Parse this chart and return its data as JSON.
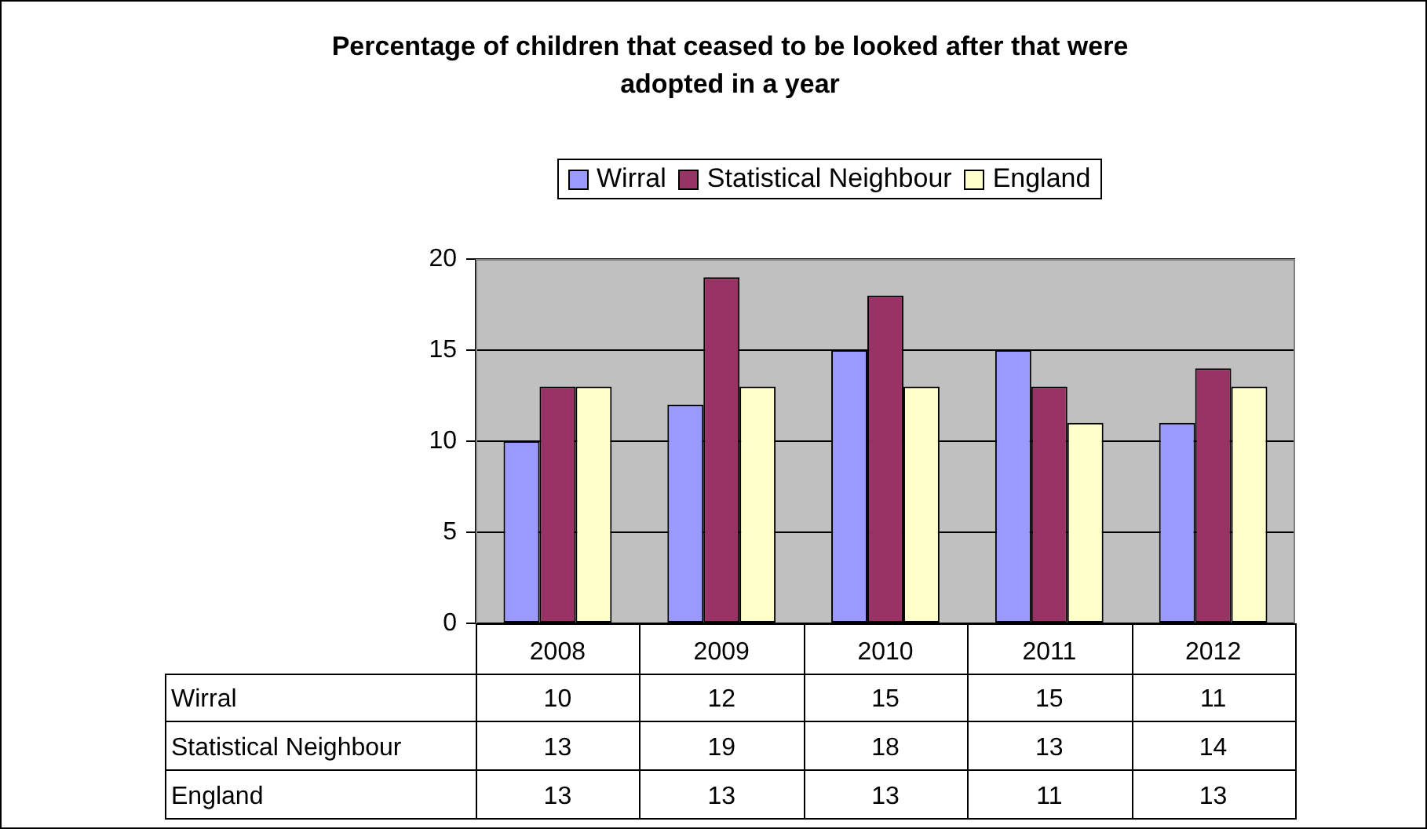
{
  "chart_data": {
    "type": "bar",
    "title": "Percentage of children that ceased to be looked after that were adopted in a year",
    "categories": [
      "2008",
      "2009",
      "2010",
      "2011",
      "2012"
    ],
    "series": [
      {
        "name": "Wirral",
        "color": "#9999ff",
        "values": [
          10,
          12,
          15,
          15,
          11
        ]
      },
      {
        "name": "Statistical Neighbour",
        "color": "#993366",
        "values": [
          13,
          19,
          18,
          13,
          14
        ]
      },
      {
        "name": "England",
        "color": "#ffffcc",
        "values": [
          13,
          13,
          13,
          11,
          13
        ]
      }
    ],
    "ylim": [
      0,
      20
    ],
    "yticks": [
      0,
      5,
      10,
      15,
      20
    ],
    "grid": "y",
    "legend": "top",
    "data_labels": true
  }
}
